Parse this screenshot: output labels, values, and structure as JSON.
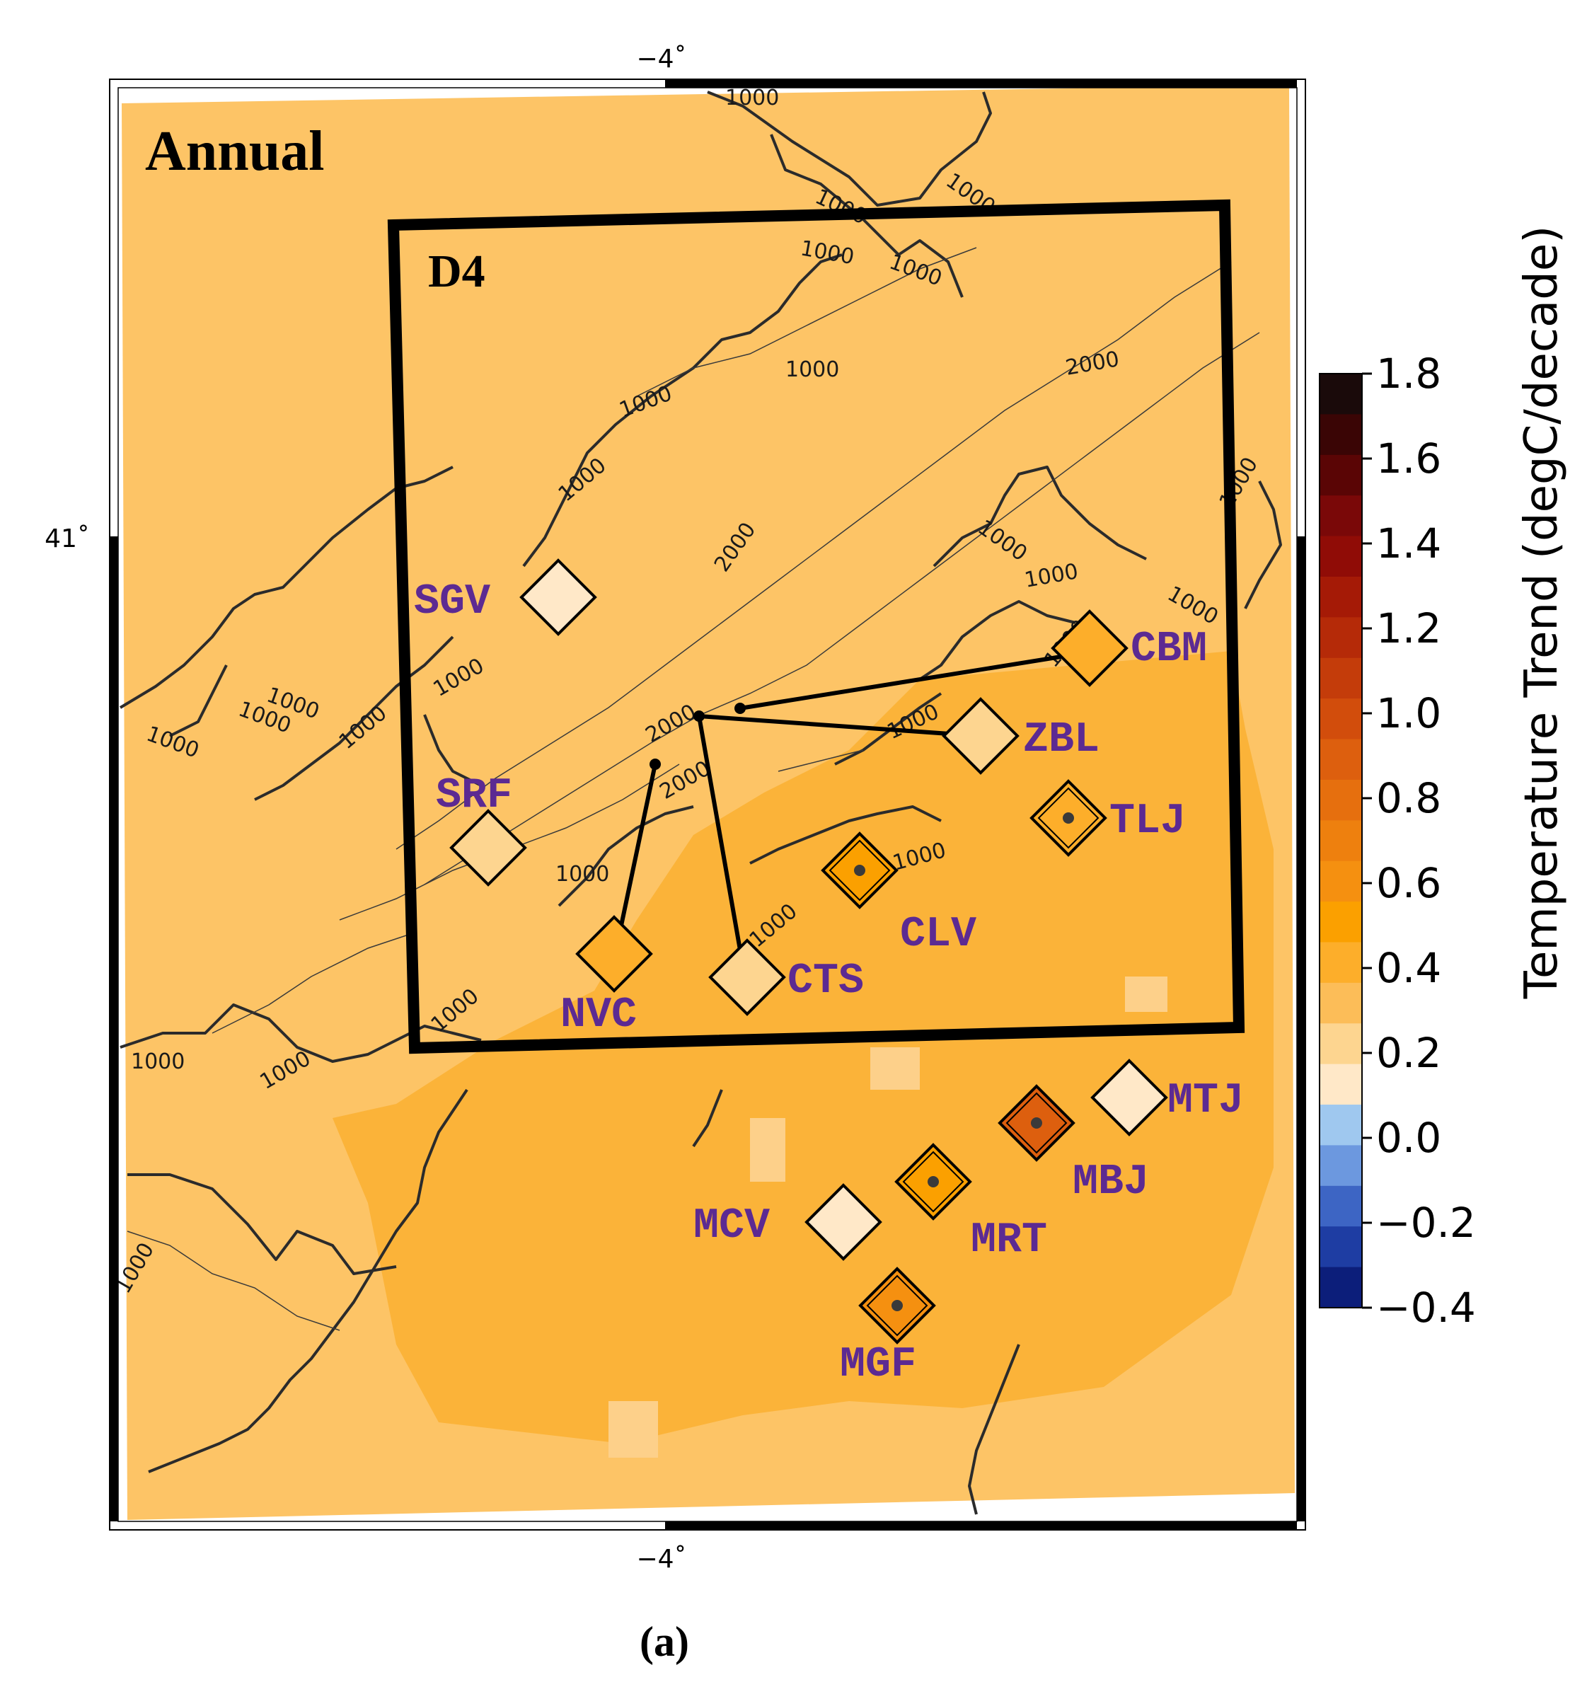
{
  "map": {
    "title": "Annual",
    "domain_label": "D4",
    "figure_caption": "(a)",
    "lon_tick_top": "−4˚",
    "lon_tick_bottom": "−4˚",
    "lat_tick": "41˚",
    "contour_label_1000": "1000",
    "contour_label_2000": "2000"
  },
  "colorbar": {
    "label": "Temperature Trend (degC/decade)",
    "ticks": [
      "1.8",
      "1.6",
      "1.4",
      "1.2",
      "1.0",
      "0.8",
      "0.6",
      "0.4",
      "0.2",
      "0.0",
      "−0.2",
      "−0.4"
    ],
    "colors": [
      "#1a0a0a",
      "#3a0505",
      "#5a0505",
      "#7a0808",
      "#900c06",
      "#a51a06",
      "#b52a08",
      "#c43c0a",
      "#d24d0c",
      "#dd5f0e",
      "#e66f0e",
      "#ee800e",
      "#f59010",
      "#fba000",
      "#fdae2a",
      "#fcbd58",
      "#fdd590",
      "#ffe8c8",
      "#9fc8ef",
      "#6c98df",
      "#3d65c4",
      "#1e3da3",
      "#0c1e7a"
    ],
    "range": [
      -0.4,
      1.8
    ]
  },
  "stations": [
    {
      "code": "SGV",
      "trend": 0.1,
      "significant": false
    },
    {
      "code": "CBM",
      "trend": 0.45,
      "significant": false
    },
    {
      "code": "ZBL",
      "trend": 0.2,
      "significant": false
    },
    {
      "code": "SRF",
      "trend": 0.2,
      "significant": false
    },
    {
      "code": "TLJ",
      "trend": 0.45,
      "significant": true
    },
    {
      "code": "CLV",
      "trend": 0.5,
      "significant": true
    },
    {
      "code": "NVC",
      "trend": 0.45,
      "significant": false
    },
    {
      "code": "CTS",
      "trend": 0.25,
      "significant": false
    },
    {
      "code": "MTJ",
      "trend": 0.1,
      "significant": false
    },
    {
      "code": "MBJ",
      "trend": 0.85,
      "significant": true
    },
    {
      "code": "MRT",
      "trend": 0.55,
      "significant": true
    },
    {
      "code": "MCV",
      "trend": 0.1,
      "significant": false
    },
    {
      "code": "MGF",
      "trend": 0.6,
      "significant": true
    }
  ],
  "colors": {
    "background_field": "#fdc466",
    "warm_field": "#fbb339",
    "light_field": "#fdd08a",
    "station_label": "#5c2a92",
    "frame": "#000000"
  }
}
